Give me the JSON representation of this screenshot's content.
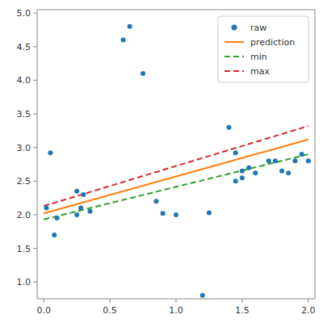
{
  "chart_data": {
    "type": "scatter",
    "series": [
      {
        "name": "raw",
        "type": "scatter",
        "color": "#1f77b4",
        "x": [
          0.05,
          0.08,
          0.25,
          0.25,
          0.28,
          0.3,
          0.35,
          0.6,
          0.65,
          0.75,
          0.85,
          0.9,
          1.0,
          1.2,
          1.25,
          1.4,
          1.45,
          1.45,
          1.5,
          1.5,
          1.55,
          1.6,
          1.7,
          1.75,
          1.8,
          1.85,
          1.9,
          1.95,
          2.0,
          0.02,
          0.1
        ],
        "values": [
          2.92,
          1.7,
          2.35,
          2.0,
          2.1,
          2.3,
          2.05,
          4.6,
          4.8,
          4.1,
          2.2,
          2.02,
          2.0,
          0.8,
          2.03,
          3.3,
          2.92,
          2.5,
          2.55,
          2.65,
          2.7,
          2.62,
          2.8,
          2.8,
          2.65,
          2.62,
          2.8,
          2.9,
          2.8,
          2.1,
          1.95
        ]
      },
      {
        "name": "prediction",
        "type": "line",
        "color": "#ff7f0e",
        "line_style": "solid",
        "x": [
          0.0,
          2.0
        ],
        "values": [
          2.02,
          3.12
        ]
      },
      {
        "name": "min",
        "type": "line",
        "color": "#2ca02c",
        "line_style": "dashed",
        "x": [
          0.0,
          2.0
        ],
        "values": [
          1.93,
          2.9
        ]
      },
      {
        "name": "max",
        "type": "line",
        "color": "#d62728",
        "line_style": "dashed",
        "x": [
          0.0,
          2.0
        ],
        "values": [
          2.13,
          3.32
        ]
      }
    ],
    "xlim": [
      -0.05,
      2.05
    ],
    "ylim": [
      0.75,
      5.05
    ],
    "xticks": [
      {
        "value": 0.0,
        "label": "0.0"
      },
      0.5,
      {
        "value": 1.0,
        "label": "1.0"
      },
      1.5,
      {
        "value": 2.0,
        "label": "2.0"
      }
    ],
    "yticks": [
      {
        "value": 1.0,
        "label": "1.0"
      },
      1.5,
      {
        "value": 2.0,
        "label": "2.0"
      },
      2.5,
      {
        "value": 3.0,
        "label": "3.0"
      },
      3.5,
      {
        "value": 4.0,
        "label": "4.0"
      },
      4.5,
      {
        "value": 5.0,
        "label": "5.0"
      }
    ],
    "grid": false,
    "legend": "upper right"
  }
}
